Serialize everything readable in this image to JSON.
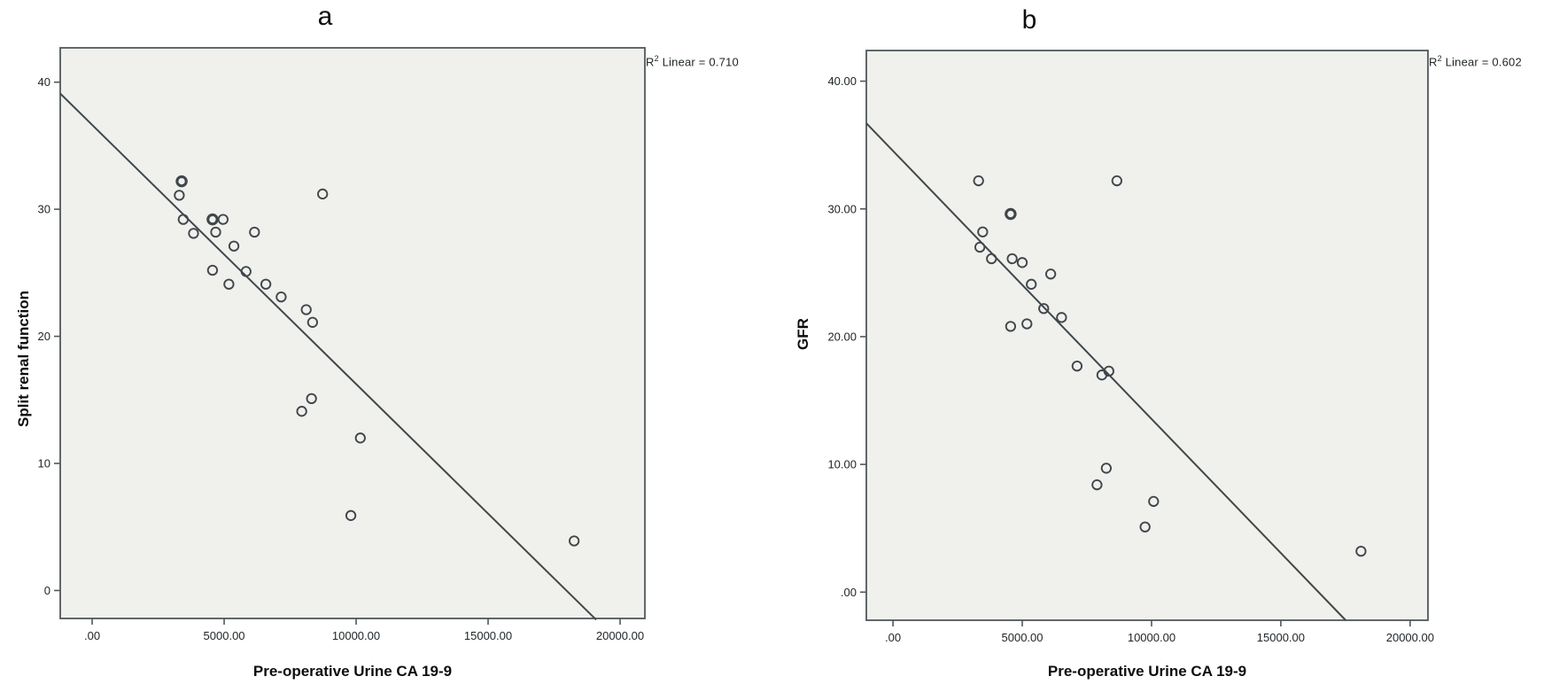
{
  "figure": {
    "description": "Two scatter plots with fitted linear regression lines"
  },
  "chart_data": [
    {
      "id": "panel-a",
      "type": "scatter",
      "title": "a",
      "xlabel": "Pre-operative Urine CA 19-9",
      "ylabel": "Split renal function",
      "annotation": "R2 Linear = 0.710",
      "r2_parts": {
        "prefix": "R",
        "sup": "2",
        "rest": " Linear = 0.710"
      },
      "r2": 0.71,
      "legend": "none",
      "grid": false,
      "xlim": [
        -1210,
        20940
      ],
      "ylim": [
        -2.2,
        42.7
      ],
      "xticks": [
        0,
        5000,
        10000,
        15000,
        20000
      ],
      "xtick_labels": [
        ".00",
        "5000.00",
        "10000.00",
        "15000.00",
        "20000.00"
      ],
      "yticks": [
        0,
        10,
        20,
        30,
        40
      ],
      "ytick_labels": [
        "0",
        "10",
        "20",
        "30",
        "40"
      ],
      "points": [
        [
          3390,
          32.2
        ],
        [
          3300,
          31.1
        ],
        [
          3450,
          29.2
        ],
        [
          3840,
          28.1
        ],
        [
          4560,
          29.2
        ],
        [
          4960,
          29.2
        ],
        [
          4680,
          28.2
        ],
        [
          5370,
          27.1
        ],
        [
          6150,
          28.2
        ],
        [
          4560,
          25.2
        ],
        [
          5180,
          24.1
        ],
        [
          5830,
          25.1
        ],
        [
          6580,
          24.1
        ],
        [
          7160,
          23.1
        ],
        [
          8110,
          22.1
        ],
        [
          8350,
          21.1
        ],
        [
          8730,
          31.2
        ],
        [
          8310,
          15.1
        ],
        [
          7940,
          14.1
        ],
        [
          10160,
          12.0
        ],
        [
          9800,
          5.9
        ],
        [
          18260,
          3.9
        ]
      ],
      "bold_indices": [
        0,
        4
      ],
      "regression_line": {
        "x1": -1208,
        "y1": 39.1,
        "x2": 19094,
        "y2": -2.3
      },
      "colors": {
        "plot_bg": "#f0f0ed",
        "frame": "#50585a",
        "marker": "#3f474b",
        "line": "#3f474b",
        "text": "#20262a"
      }
    },
    {
      "id": "panel-b",
      "type": "scatter",
      "title": "b",
      "xlabel": "Pre-operative Urine CA 19-9",
      "ylabel": "GFR",
      "annotation": "R2 Linear = 0.602",
      "r2_parts": {
        "prefix": "R",
        "sup": "2",
        "rest": " Linear = 0.602"
      },
      "r2": 0.602,
      "legend": "none",
      "grid": false,
      "xlim": [
        -1030,
        20690
      ],
      "ylim": [
        -2.2,
        42.4
      ],
      "xticks": [
        0,
        5000,
        10000,
        15000,
        20000
      ],
      "xtick_labels": [
        ".00",
        "5000.00",
        "10000.00",
        "15000.00",
        "20000.00"
      ],
      "yticks": [
        0,
        10,
        20,
        30,
        40
      ],
      "ytick_labels": [
        ".00",
        "10.00",
        "20.00",
        "30.00",
        "40.00"
      ],
      "points": [
        [
          3310,
          32.2
        ],
        [
          8660,
          32.2
        ],
        [
          4550,
          29.6
        ],
        [
          3470,
          28.2
        ],
        [
          3360,
          27.0
        ],
        [
          3810,
          26.1
        ],
        [
          4610,
          26.1
        ],
        [
          5000,
          25.8
        ],
        [
          6100,
          24.9
        ],
        [
          5350,
          24.1
        ],
        [
          5830,
          22.2
        ],
        [
          6520,
          21.5
        ],
        [
          4550,
          20.8
        ],
        [
          5180,
          21.0
        ],
        [
          7120,
          17.7
        ],
        [
          8080,
          17.0
        ],
        [
          8350,
          17.3
        ],
        [
          8250,
          9.7
        ],
        [
          7890,
          8.4
        ],
        [
          10080,
          7.1
        ],
        [
          9750,
          5.1
        ],
        [
          18100,
          3.2
        ]
      ],
      "bold_indices": [
        2
      ],
      "regression_line": {
        "x1": -1027,
        "y1": 36.7,
        "x2": 17507,
        "y2": -2.2
      },
      "colors": {
        "plot_bg": "#f0f0ed",
        "frame": "#50585a",
        "marker": "#3f474b",
        "line": "#3f474b",
        "text": "#20262a"
      }
    }
  ]
}
